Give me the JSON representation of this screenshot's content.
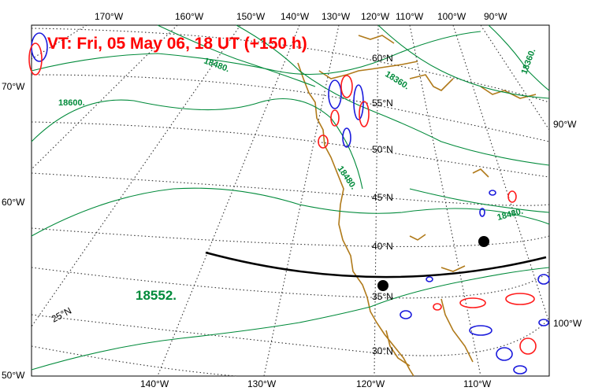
{
  "title": "VT:  Fri, 05 May 06, 18 UT (+150 h)",
  "colors": {
    "contour": "#008a3a",
    "positive": "#ff1a1a",
    "negative": "#1a1adc",
    "coast": "#b07a1a",
    "grid": "#333333",
    "path": "#000000",
    "title": "#ff0000"
  },
  "top_lon_labels": [
    "170°W",
    "160°W",
    "150°W",
    "140°W",
    "130°W",
    "120°W",
    "110°W",
    "100°W",
    "90°W"
  ],
  "bottom_lon_labels": [
    "140°W",
    "130°W",
    "120°W",
    "110°W"
  ],
  "left_labels": [
    "70°W",
    "60°W",
    "50°W"
  ],
  "right_labels": [
    "90°W",
    "100°W"
  ],
  "lat_labels": [
    "60°N",
    "55°N",
    "50°N",
    "45°N",
    "40°N",
    "35°N",
    "30°N",
    "25°N"
  ],
  "contour_labels": [
    "18480.",
    "18600.",
    "18360.",
    "18360.",
    "18480.",
    "18480."
  ],
  "center_label": "18552."
}
